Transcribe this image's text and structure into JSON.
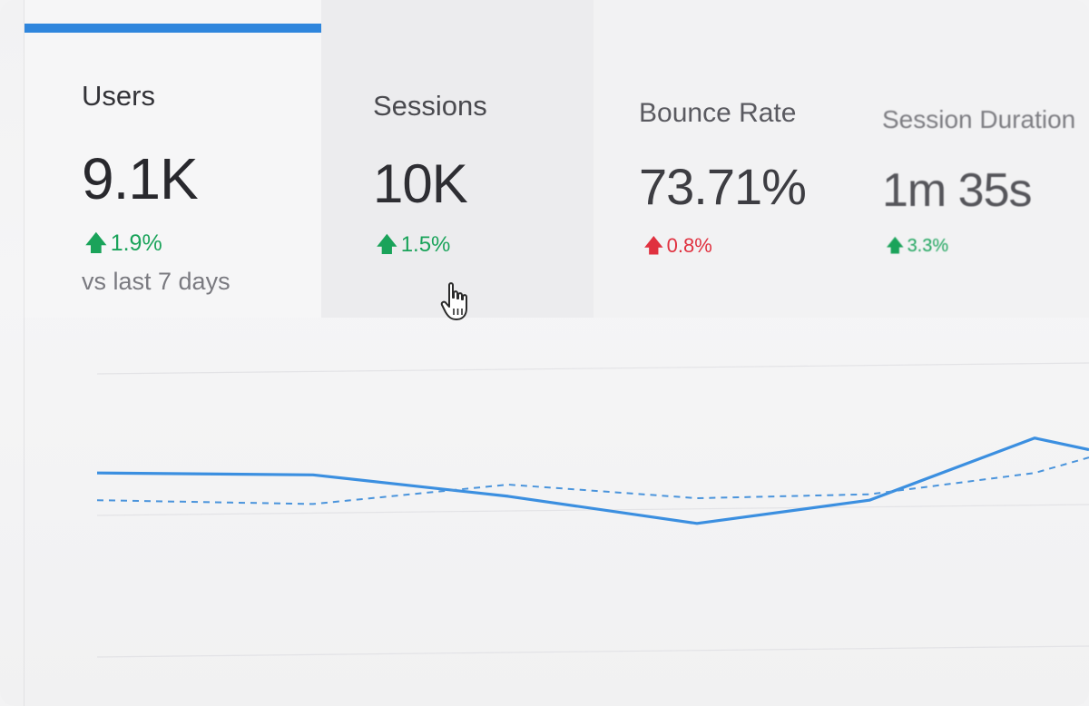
{
  "metrics": {
    "users": {
      "label": "Users",
      "value": "9.1K",
      "change": "1.9%",
      "compare": "vs last 7 days"
    },
    "sessions": {
      "label": "Sessions",
      "value": "10K",
      "change": "1.5%"
    },
    "bounce_rate": {
      "label": "Bounce Rate",
      "value": "73.71%",
      "change": "0.8%"
    },
    "session_duration": {
      "label": "Session Duration",
      "value": "1m 35s",
      "change": "3.3%"
    }
  },
  "icons": {
    "change_arrow": "arrow-up-icon",
    "cursor": "hand-pointer-icon"
  },
  "colors": {
    "accent": "#2f86dd",
    "positive": "#1aa35a",
    "negative": "#e0313f"
  },
  "chart_data": {
    "type": "line",
    "x": [
      0,
      1,
      2,
      3,
      4,
      5,
      6
    ],
    "series": [
      {
        "values": [
          6.0,
          5.95,
          5.4,
          4.7,
          5.3,
          6.9,
          6.6
        ]
      },
      {
        "values": [
          5.3,
          5.2,
          5.7,
          5.35,
          5.45,
          6.0,
          6.4
        ]
      }
    ],
    "ylim": [
      0,
      10
    ],
    "grid": true
  }
}
